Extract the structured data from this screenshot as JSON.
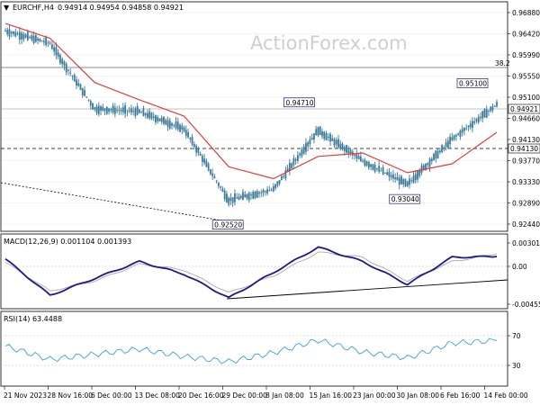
{
  "header": {
    "symbol": "EURCHF,H4",
    "ohlc": "0.94914 0.94954 0.94858 0.94921",
    "watermark": "ActionForex.com"
  },
  "colors": {
    "candle": "#3a7a9a",
    "ma": "#e23b3b",
    "macd": "#1a1a8c",
    "signal": "#a8a8a8",
    "rsi": "#3aa0e0",
    "grid": "#eaeaea",
    "axis": "#000000",
    "label_box": "#1a1a8c"
  },
  "price_panel": {
    "y_ticks": [
      "0.96880",
      "0.96420",
      "0.95990",
      "0.95550",
      "0.95100",
      "0.94660",
      "0.94130",
      "0.93770",
      "0.93330",
      "0.92890",
      "0.92440"
    ],
    "fib_label": "38.2",
    "current_price": "0.94921",
    "support_label": "0.94130",
    "annotations": [
      "0.95100",
      "0.94710",
      "0.93040",
      "0.92520"
    ]
  },
  "macd_panel": {
    "title": "MACD(12,26,9) 0.001104 0.001393",
    "y_ticks": [
      "0.003013",
      "0.00",
      "-0.00455"
    ]
  },
  "rsi_panel": {
    "title": "RSI(14) 63.4488",
    "y_ticks": [
      "70",
      "30"
    ]
  },
  "x_axis": {
    "ticks": [
      "21 Nov 2023",
      "28 Nov 16:00",
      "6 Dec 00:00",
      "13 Dec 08:00",
      "20 Dec 16:00",
      "29 Dec 00:00",
      "8 Jan 08:00",
      "15 Jan 16:00",
      "23 Jan 00:00",
      "30 Jan 08:00",
      "6 Feb 16:00",
      "14 Feb 00:00"
    ]
  },
  "chart_data": [
    {
      "type": "line",
      "title": "EURCHF,H4",
      "series": [
        {
          "name": "close",
          "x": [
            "21 Nov 2023",
            "28 Nov 16:00",
            "6 Dec 00:00",
            "13 Dec 08:00",
            "20 Dec 16:00",
            "29 Dec 00:00",
            "8 Jan 08:00",
            "15 Jan 16:00",
            "23 Jan 00:00",
            "30 Jan 08:00",
            "6 Feb 16:00",
            "14 Feb 00:00"
          ],
          "values": [
            0.964,
            0.9615,
            0.9482,
            0.9476,
            0.9441,
            0.9296,
            0.9318,
            0.9438,
            0.9376,
            0.9328,
            0.942,
            0.949
          ]
        },
        {
          "name": "MA",
          "x": [
            "21 Nov 2023",
            "28 Nov 16:00",
            "6 Dec 00:00",
            "13 Dec 08:00",
            "20 Dec 16:00",
            "29 Dec 00:00",
            "8 Jan 08:00",
            "15 Jan 16:00",
            "23 Jan 00:00",
            "30 Jan 08:00",
            "6 Feb 16:00",
            "14 Feb 00:00"
          ],
          "values": [
            0.9655,
            0.9625,
            0.9535,
            0.95,
            0.9467,
            0.9364,
            0.934,
            0.9385,
            0.9392,
            0.9352,
            0.937,
            0.9434
          ]
        }
      ],
      "ylim": [
        0.9244,
        0.9688
      ],
      "annotations": [
        {
          "label": "0.95100",
          "x": "14 Feb 00:00",
          "y": 0.951
        },
        {
          "label": "0.94710",
          "x": "15 Jan 16:00",
          "y": 0.9471
        },
        {
          "label": "0.93040",
          "x": "30 Jan 08:00",
          "y": 0.9304
        },
        {
          "label": "0.92520",
          "x": "29 Dec 00:00",
          "y": 0.9252
        }
      ],
      "horizontal_lines": [
        0.9413,
        0.9492
      ],
      "fib_line_label": "38.2"
    },
    {
      "type": "line",
      "title": "MACD(12,26,9) 0.001104 0.001393",
      "series": [
        {
          "name": "MACD",
          "values": [
            0.0008,
            -0.0035,
            -0.0015,
            0.0005,
            -0.001,
            -0.0038,
            -0.0008,
            0.0022,
            0.0005,
            -0.0022,
            0.001,
            0.0011
          ]
        },
        {
          "name": "Signal",
          "values": [
            0.0004,
            -0.003,
            -0.0018,
            0.0002,
            -0.0005,
            -0.0032,
            -0.0012,
            0.0016,
            0.001,
            -0.0018,
            0.0005,
            0.0014
          ]
        }
      ],
      "ylim": [
        -0.00455,
        0.003013
      ]
    },
    {
      "type": "line",
      "title": "RSI(14) 63.4488",
      "series": [
        {
          "name": "RSI",
          "values": [
            56,
            38,
            45,
            52,
            42,
            35,
            47,
            64,
            48,
            40,
            60,
            63.4
          ]
        }
      ],
      "ylim": [
        0,
        100
      ]
    }
  ]
}
